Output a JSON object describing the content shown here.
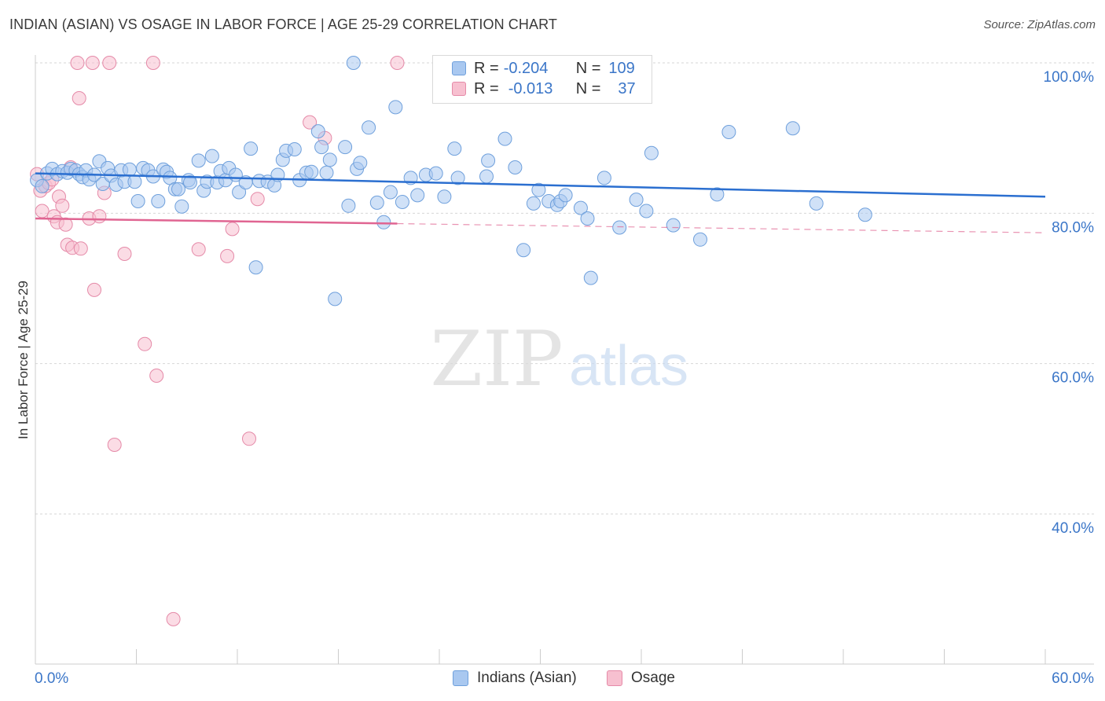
{
  "title": "INDIAN (ASIAN) VS OSAGE IN LABOR FORCE | AGE 25-29 CORRELATION CHART",
  "source": "Source: ZipAtlas.com",
  "legend": {
    "r_label": "R =",
    "n_label": "N =",
    "rows": [
      {
        "r": "-0.204",
        "n": "109",
        "color": "#a9c8f0",
        "border": "#6fa0dc"
      },
      {
        "r": "-0.013",
        "n": "37",
        "color": "#f7c0d0",
        "border": "#e58aa8"
      }
    ]
  },
  "watermark": {
    "zip": "ZIP",
    "atlas": "atlas"
  },
  "chart_data": {
    "type": "scatter",
    "ylabel": "In Labor Force | Age 25-29",
    "xlim": [
      0,
      60
    ],
    "ylim": [
      18,
      102
    ],
    "x_tick_labels": {
      "left": "0.0%",
      "right": "60.0%"
    },
    "y_ticks": [
      {
        "value": 100,
        "label": "100.0%"
      },
      {
        "value": 80,
        "label": "80.0%"
      },
      {
        "value": 60,
        "label": "60.0%"
      },
      {
        "value": 40,
        "label": "40.0%"
      }
    ],
    "grid": true,
    "legend_position": "bottom",
    "series": [
      {
        "name": "Indians (Asian)",
        "color": "#a9c8f0",
        "stroke": "#6fa0dc",
        "line_color": "#2b6fd0",
        "trend": {
          "x0": 0,
          "y0": 85.3,
          "x1": 60,
          "y1": 82.2
        },
        "points": [
          [
            0.1,
            84.4
          ],
          [
            0.4,
            83.6
          ],
          [
            0.7,
            85.3
          ],
          [
            1.0,
            85.9
          ],
          [
            1.3,
            85.2
          ],
          [
            1.6,
            85.6
          ],
          [
            1.9,
            85.4
          ],
          [
            2.1,
            85.9
          ],
          [
            2.4,
            85.7
          ],
          [
            2.6,
            85.2
          ],
          [
            2.8,
            84.8
          ],
          [
            3.0,
            85.7
          ],
          [
            3.2,
            84.5
          ],
          [
            3.5,
            85.1
          ],
          [
            3.8,
            86.9
          ],
          [
            4.0,
            83.9
          ],
          [
            4.3,
            86.0
          ],
          [
            4.5,
            85.0
          ],
          [
            4.8,
            83.8
          ],
          [
            5.1,
            85.7
          ],
          [
            5.3,
            84.2
          ],
          [
            5.6,
            85.8
          ],
          [
            5.9,
            84.2
          ],
          [
            6.1,
            81.6
          ],
          [
            6.4,
            86.0
          ],
          [
            6.7,
            85.7
          ],
          [
            7.0,
            84.9
          ],
          [
            7.3,
            81.6
          ],
          [
            7.6,
            85.8
          ],
          [
            7.8,
            85.5
          ],
          [
            8.0,
            84.7
          ],
          [
            8.3,
            83.2
          ],
          [
            8.5,
            83.2
          ],
          [
            8.7,
            80.9
          ],
          [
            9.1,
            84.4
          ],
          [
            9.2,
            84.1
          ],
          [
            9.7,
            87.0
          ],
          [
            10.0,
            83.0
          ],
          [
            10.2,
            84.2
          ],
          [
            10.5,
            87.6
          ],
          [
            10.8,
            84.1
          ],
          [
            11.0,
            85.6
          ],
          [
            11.3,
            84.4
          ],
          [
            11.5,
            86.0
          ],
          [
            11.9,
            85.1
          ],
          [
            12.1,
            82.8
          ],
          [
            12.5,
            84.1
          ],
          [
            12.8,
            88.6
          ],
          [
            13.1,
            72.8
          ],
          [
            13.3,
            84.3
          ],
          [
            13.8,
            84.2
          ],
          [
            14.2,
            83.7
          ],
          [
            14.4,
            85.1
          ],
          [
            14.7,
            87.1
          ],
          [
            14.9,
            88.3
          ],
          [
            15.4,
            88.5
          ],
          [
            15.7,
            84.4
          ],
          [
            16.1,
            85.4
          ],
          [
            16.4,
            85.5
          ],
          [
            16.8,
            90.9
          ],
          [
            17.0,
            88.8
          ],
          [
            17.3,
            85.4
          ],
          [
            17.5,
            87.1
          ],
          [
            17.8,
            68.6
          ],
          [
            18.4,
            88.8
          ],
          [
            18.6,
            81.0
          ],
          [
            18.9,
            100.0
          ],
          [
            19.1,
            85.9
          ],
          [
            19.3,
            86.7
          ],
          [
            19.8,
            91.4
          ],
          [
            20.3,
            81.4
          ],
          [
            20.7,
            78.8
          ],
          [
            21.1,
            82.8
          ],
          [
            21.4,
            94.1
          ],
          [
            21.8,
            81.5
          ],
          [
            22.3,
            84.7
          ],
          [
            22.7,
            82.4
          ],
          [
            23.2,
            85.1
          ],
          [
            23.8,
            85.3
          ],
          [
            24.3,
            82.2
          ],
          [
            24.9,
            88.6
          ],
          [
            25.1,
            84.7
          ],
          [
            26.8,
            84.9
          ],
          [
            26.9,
            87.0
          ],
          [
            27.9,
            89.9
          ],
          [
            28.5,
            86.1
          ],
          [
            29.0,
            75.1
          ],
          [
            29.6,
            81.3
          ],
          [
            29.9,
            83.1
          ],
          [
            30.5,
            81.6
          ],
          [
            31.0,
            81.1
          ],
          [
            31.2,
            81.6
          ],
          [
            31.5,
            82.4
          ],
          [
            32.4,
            80.7
          ],
          [
            32.8,
            79.3
          ],
          [
            33.0,
            71.4
          ],
          [
            33.8,
            84.7
          ],
          [
            34.7,
            78.1
          ],
          [
            35.7,
            81.8
          ],
          [
            36.3,
            80.3
          ],
          [
            36.6,
            88.0
          ],
          [
            37.9,
            78.4
          ],
          [
            39.5,
            76.5
          ],
          [
            40.5,
            82.5
          ],
          [
            41.2,
            90.8
          ],
          [
            45.0,
            91.3
          ],
          [
            46.4,
            81.3
          ],
          [
            49.3,
            79.8
          ]
        ]
      },
      {
        "name": "Osage",
        "color": "#f7c0d0",
        "stroke": "#e58aa8",
        "line_color": "#e06592",
        "trend": {
          "x0": 0,
          "y0": 79.3,
          "x1": 60,
          "y1": 77.4
        },
        "points": [
          [
            0.1,
            85.2
          ],
          [
            0.3,
            83.0
          ],
          [
            0.4,
            80.3
          ],
          [
            0.6,
            83.6
          ],
          [
            0.8,
            84.0
          ],
          [
            1.0,
            84.5
          ],
          [
            1.1,
            79.6
          ],
          [
            1.3,
            78.8
          ],
          [
            1.4,
            82.2
          ],
          [
            1.6,
            81.0
          ],
          [
            1.8,
            78.5
          ],
          [
            1.9,
            75.8
          ],
          [
            2.1,
            86.1
          ],
          [
            2.2,
            75.4
          ],
          [
            2.5,
            100.0
          ],
          [
            2.6,
            95.3
          ],
          [
            2.7,
            75.3
          ],
          [
            3.2,
            79.3
          ],
          [
            3.4,
            100.0
          ],
          [
            3.5,
            69.8
          ],
          [
            3.8,
            79.6
          ],
          [
            4.1,
            82.7
          ],
          [
            4.4,
            100.0
          ],
          [
            4.7,
            49.2
          ],
          [
            5.3,
            74.6
          ],
          [
            6.5,
            62.6
          ],
          [
            7.0,
            100.0
          ],
          [
            7.2,
            58.4
          ],
          [
            8.2,
            26.0
          ],
          [
            9.7,
            75.2
          ],
          [
            11.4,
            74.3
          ],
          [
            11.7,
            77.9
          ],
          [
            12.7,
            50.0
          ],
          [
            13.2,
            81.9
          ],
          [
            16.3,
            92.1
          ],
          [
            17.2,
            90.0
          ],
          [
            21.5,
            100.0
          ]
        ]
      }
    ]
  }
}
